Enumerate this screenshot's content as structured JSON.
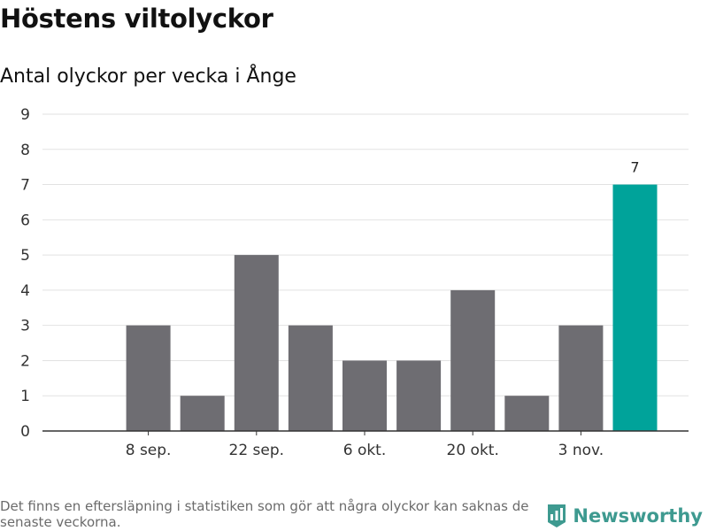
{
  "header": {
    "title": "Höstens viltolyckor",
    "subtitle": "Antal olyckor per vecka i Ånge"
  },
  "chart_data": {
    "type": "bar",
    "title": "Höstens viltolyckor",
    "subtitle": "Antal olyckor per vecka i Ånge",
    "x_tick_labels": [
      "8 sep.",
      "22 sep.",
      "6 okt.",
      "20 okt.",
      "3 nov."
    ],
    "x_tick_positions": [
      1,
      3,
      5,
      7,
      9
    ],
    "values": [
      0,
      3,
      1,
      5,
      3,
      2,
      2,
      4,
      1,
      3,
      7
    ],
    "highlight_index": 10,
    "highlight_label": "7",
    "ylim": [
      0,
      9
    ],
    "yticks": [
      0,
      1,
      2,
      3,
      4,
      5,
      6,
      7,
      8,
      9
    ],
    "grid": true,
    "colors": {
      "bar": "#6e6d72",
      "highlight": "#00a39a",
      "grid": "#e2e2e2",
      "axis": "#333333"
    }
  },
  "footer": {
    "note": "Det finns en eftersläpning i statistiken som gör att några olyckor kan saknas de senaste veckorna.",
    "brand": "Newsworthy",
    "brand_icon": "bar-chart-logo-icon",
    "brand_color": "#3e9a90"
  }
}
